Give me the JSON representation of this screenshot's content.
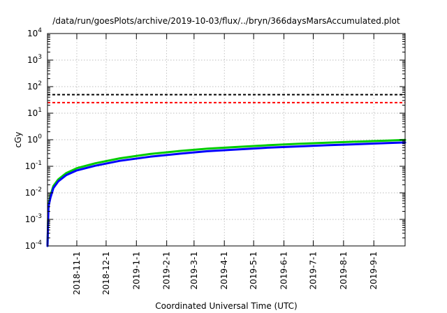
{
  "chart_data": {
    "type": "line",
    "title": "/data/run/goesPlots/archive/2019-10-03/flux/../bryn/366daysMarsAccumulated.plot",
    "xlabel": "Coordinated Universal Time (UTC)",
    "ylabel": "cGy",
    "yscale": "log",
    "ylim": [
      0.0001,
      10000
    ],
    "xlim": [
      "2018-10-02",
      "2019-10-03"
    ],
    "grid": true,
    "x_tick_labels": [
      "2018-11-1",
      "2018-12-1",
      "2019-1-1",
      "2019-2-1",
      "2019-3-1",
      "2019-4-1",
      "2019-5-1",
      "2019-6-1",
      "2019-7-1",
      "2019-8-1",
      "2019-9-1"
    ],
    "y_ticks": [
      {
        "value": 0.0001,
        "base": "10",
        "exp": "-4"
      },
      {
        "value": 0.001,
        "base": "10",
        "exp": "-3"
      },
      {
        "value": 0.01,
        "base": "10",
        "exp": "-2"
      },
      {
        "value": 0.1,
        "base": "10",
        "exp": "-1"
      },
      {
        "value": 1,
        "base": "10",
        "exp": "0"
      },
      {
        "value": 10,
        "base": "10",
        "exp": "1"
      },
      {
        "value": 100,
        "base": "10",
        "exp": "2"
      },
      {
        "value": 1000,
        "base": "10",
        "exp": "3"
      },
      {
        "value": 10000,
        "base": "10",
        "exp": "4"
      }
    ],
    "reference_lines": [
      {
        "value": 50,
        "color": "#000000",
        "style": "dashed"
      },
      {
        "value": 25,
        "color": "#ff0000",
        "style": "dashed"
      }
    ],
    "series": [
      {
        "color": "#00cc00",
        "x": [
          "2018-10-02",
          "2018-10-03",
          "2018-10-05",
          "2018-10-08",
          "2018-10-13",
          "2018-10-21",
          "2018-11-01",
          "2018-11-20",
          "2018-12-15",
          "2019-01-15",
          "2019-02-15",
          "2019-03-15",
          "2019-04-15",
          "2019-05-15",
          "2019-06-15",
          "2019-07-15",
          "2019-08-15",
          "2019-09-15",
          "2019-10-03"
        ],
        "values": [
          0.0001,
          0.0035,
          0.008,
          0.018,
          0.032,
          0.055,
          0.085,
          0.13,
          0.2,
          0.29,
          0.38,
          0.46,
          0.54,
          0.62,
          0.7,
          0.77,
          0.85,
          0.93,
          0.98
        ]
      },
      {
        "color": "#0000ff",
        "x": [
          "2018-10-02",
          "2018-10-03",
          "2018-10-05",
          "2018-10-08",
          "2018-10-13",
          "2018-10-21",
          "2018-11-01",
          "2018-11-20",
          "2018-12-15",
          "2019-01-15",
          "2019-02-15",
          "2019-03-15",
          "2019-04-15",
          "2019-05-15",
          "2019-06-15",
          "2019-07-15",
          "2019-08-15",
          "2019-09-15",
          "2019-10-03"
        ],
        "values": [
          0.0001,
          0.003,
          0.0065,
          0.015,
          0.027,
          0.046,
          0.07,
          0.105,
          0.16,
          0.23,
          0.3,
          0.37,
          0.43,
          0.5,
          0.56,
          0.62,
          0.68,
          0.75,
          0.79
        ]
      }
    ]
  }
}
